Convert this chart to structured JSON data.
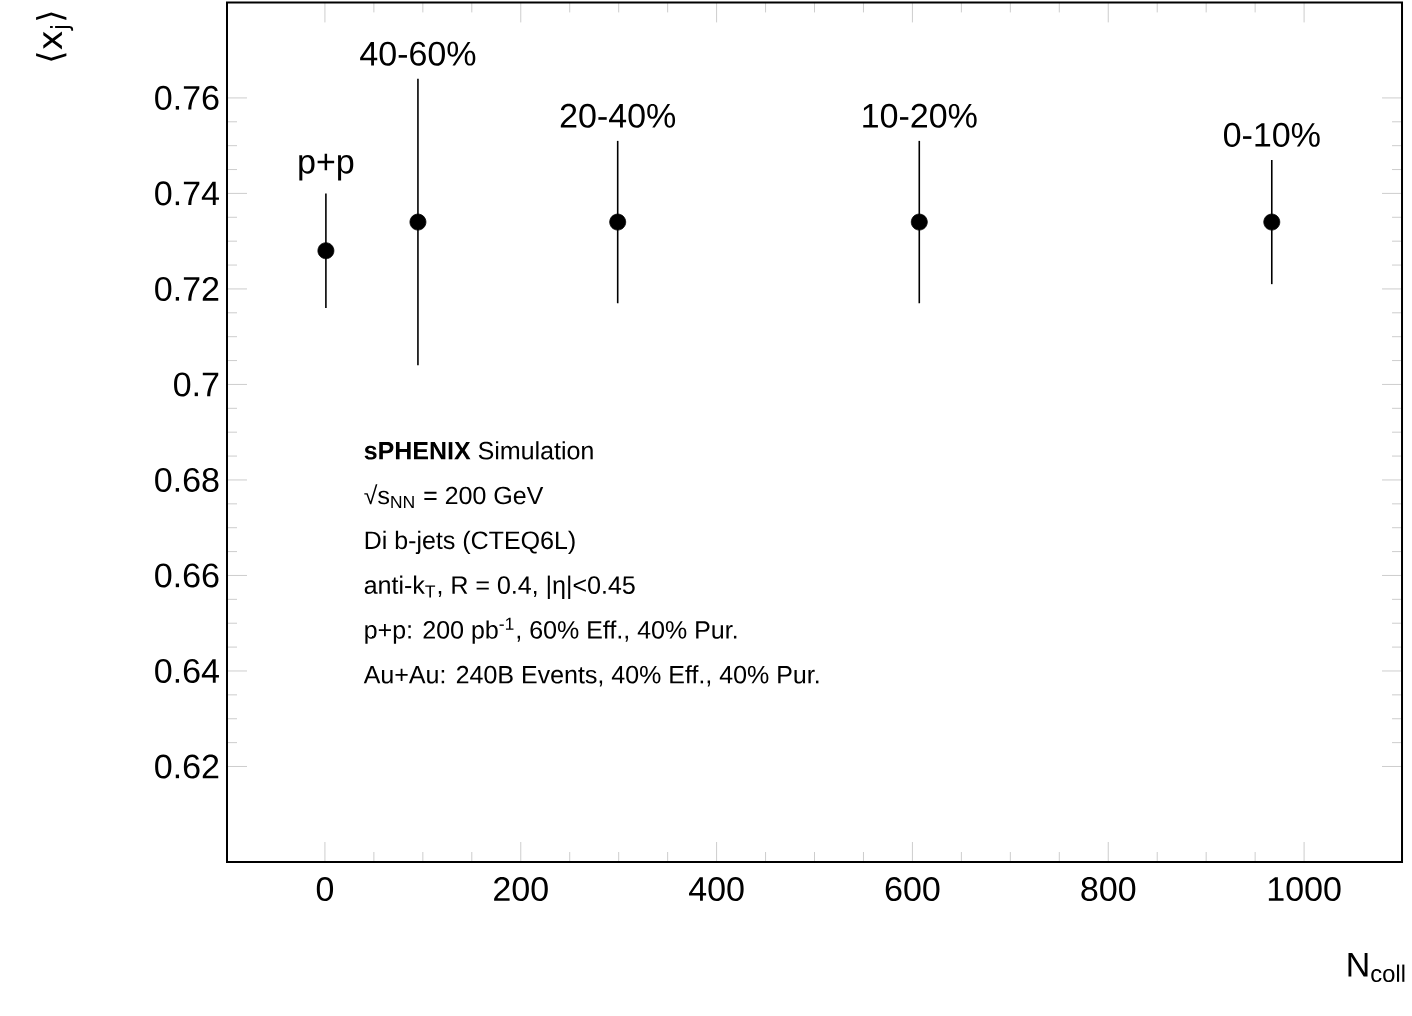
{
  "chart_data": {
    "type": "scatter",
    "xlabel": "N$_{coll}$",
    "ylabel": "⟨x$_{j}$⟩",
    "x": [
      1,
      95,
      299,
      607,
      967
    ],
    "series": [
      {
        "color": "#000000",
        "values": [
          0.728,
          0.734,
          0.734,
          0.734,
          0.734
        ],
        "errors": [
          0.012,
          0.03,
          0.017,
          0.017,
          0.013
        ]
      }
    ],
    "marker": "circle",
    "xlim": [
      -100,
      1100
    ],
    "xticks": [
      0,
      200,
      400,
      600,
      800,
      1000
    ],
    "ylim": [
      0.6,
      0.78
    ],
    "yticks": [
      0.62,
      0.64,
      0.66,
      0.68,
      0.7,
      0.72,
      0.74,
      0.76
    ],
    "annotations": [
      {
        "text": "p+p",
        "x": 1,
        "y": 0.74
      },
      {
        "text": "40-60%",
        "x": 95,
        "y": 0.764
      },
      {
        "text": "20-40%",
        "x": 299,
        "y": 0.751
      },
      {
        "text": "10-20%",
        "x": 607,
        "y": 0.751
      },
      {
        "text": "0-10%",
        "x": 967,
        "y": 0.747
      },
      "**sPHENIX** Simulation",
      "√s$_{NN}$ = 200 GeV",
      "Di b-jets (CTEQ6L)",
      "anti-k$_{T}$, R = 0.4, |η|<0.45",
      "p+p: 200 pb$^{-1}$, 60% Eff., 40% Pur.",
      "Au+Au: 240B Events, 40% Eff., 40% Pur."
    ]
  }
}
